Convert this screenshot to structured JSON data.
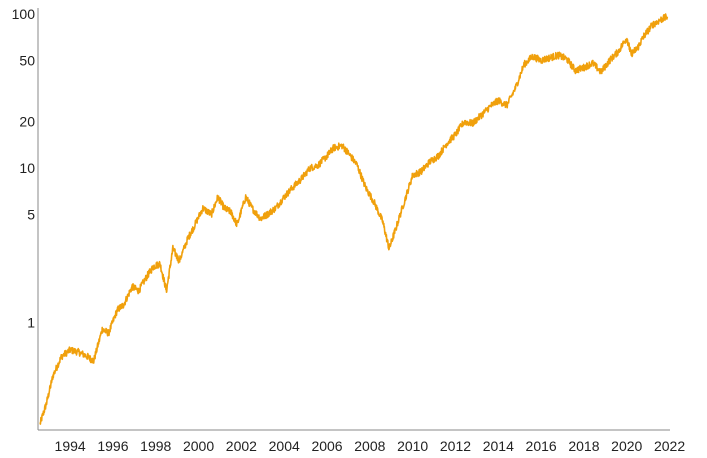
{
  "chart_data": {
    "type": "line",
    "title": "",
    "xlabel": "",
    "ylabel": "",
    "y_scale": "log",
    "ylim": [
      0.2,
      100
    ],
    "xlim": [
      1992.5,
      2022.3
    ],
    "grid": false,
    "legend": "none",
    "x_ticks": [
      1994,
      1996,
      1998,
      2000,
      2002,
      2004,
      2006,
      2008,
      2010,
      2012,
      2014,
      2016,
      2018,
      2020,
      2022
    ],
    "x_tick_labels": [
      "1994",
      "1996",
      "1998",
      "2000",
      "2002",
      "2004",
      "2006",
      "2008",
      "2010",
      "2012",
      "2014",
      "2016",
      "2018",
      "2020",
      "2022"
    ],
    "y_ticks": [
      1,
      5,
      10,
      20,
      50,
      100
    ],
    "y_tick_labels": [
      "1",
      "5",
      "10",
      "20",
      "50",
      "100"
    ],
    "colors": {
      "line": "#f0a00c",
      "axis": "#888888"
    },
    "series": [
      {
        "x": [
          1992.6,
          1992.9,
          1993.2,
          1993.6,
          1994.0,
          1994.4,
          1994.8,
          1995.1,
          1995.5,
          1995.8,
          1996.2,
          1996.5,
          1996.9,
          1997.2,
          1997.6,
          1997.9,
          1998.2,
          1998.5,
          1998.8,
          1999.1,
          1999.5,
          1999.8,
          2000.2,
          2000.6,
          2000.9,
          2001.2,
          2001.5,
          2001.8,
          2002.2,
          2002.5,
          2002.9,
          2003.2,
          2003.6,
          2004.0,
          2004.4,
          2004.8,
          2005.2,
          2005.6,
          2006.0,
          2006.3,
          2006.7,
          2007.0,
          2007.4,
          2007.8,
          2008.2,
          2008.6,
          2008.9,
          2009.2,
          2009.6,
          2010.0,
          2010.4,
          2010.8,
          2011.2,
          2011.6,
          2012.0,
          2012.4,
          2012.8,
          2013.2,
          2013.6,
          2014.0,
          2014.4,
          2014.8,
          2015.2,
          2015.6,
          2016.0,
          2016.4,
          2016.8,
          2017.2,
          2017.6,
          2018.0,
          2018.4,
          2018.8,
          2019.2,
          2019.6,
          2020.0,
          2020.2,
          2020.5,
          2020.8,
          2021.2,
          2021.6,
          2021.9
        ],
        "y": [
          0.22,
          0.3,
          0.45,
          0.6,
          0.66,
          0.64,
          0.6,
          0.56,
          0.9,
          0.85,
          1.2,
          1.3,
          1.7,
          1.6,
          2.0,
          2.3,
          2.4,
          1.6,
          3.0,
          2.5,
          3.5,
          4.2,
          5.5,
          5.0,
          6.5,
          5.5,
          5.2,
          4.3,
          6.5,
          5.5,
          4.7,
          5.0,
          5.5,
          6.5,
          7.5,
          8.5,
          10.0,
          10.5,
          12.0,
          13.5,
          14.0,
          12.5,
          10.5,
          7.5,
          6.0,
          4.5,
          3.0,
          4.0,
          6.0,
          9.0,
          9.5,
          11.0,
          12.0,
          14.5,
          16.5,
          20.0,
          19.5,
          22.0,
          25.0,
          27.5,
          25.5,
          33.0,
          47.0,
          53.0,
          50.0,
          52.0,
          54.0,
          51.0,
          43.0,
          45.0,
          48.0,
          42.0,
          50.0,
          57.0,
          70.0,
          55.0,
          60.0,
          72.0,
          85.0,
          92.0,
          96.0
        ]
      }
    ]
  }
}
